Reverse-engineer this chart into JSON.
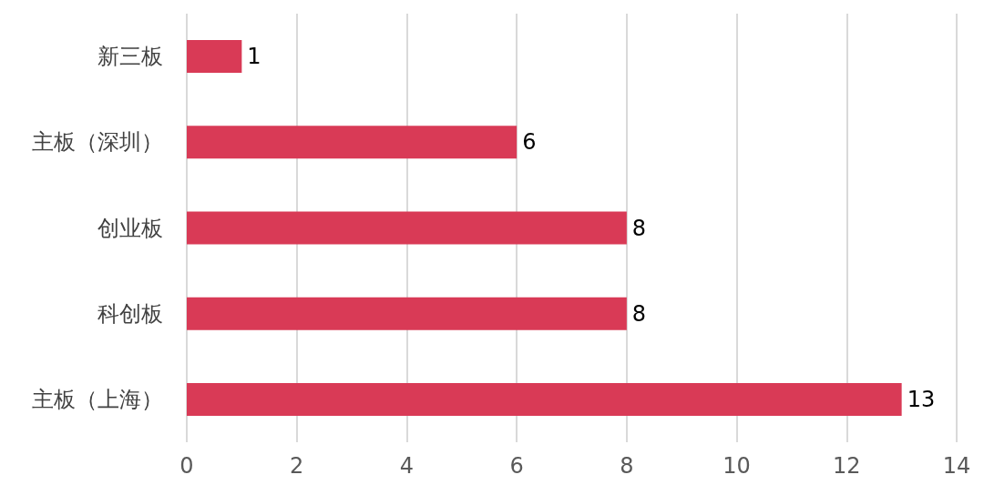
{
  "chart_data": {
    "type": "bar",
    "orientation": "horizontal",
    "categories": [
      "新三板",
      "主板（深圳）",
      "创业板",
      "科创板",
      "主板（上海）"
    ],
    "values": [
      1,
      6,
      8,
      8,
      13
    ],
    "color": "#d93a56",
    "xlim": [
      0,
      14
    ],
    "xticks": [
      0,
      2,
      4,
      6,
      8,
      10,
      12,
      14
    ],
    "grid": "x",
    "data_labels": true
  }
}
